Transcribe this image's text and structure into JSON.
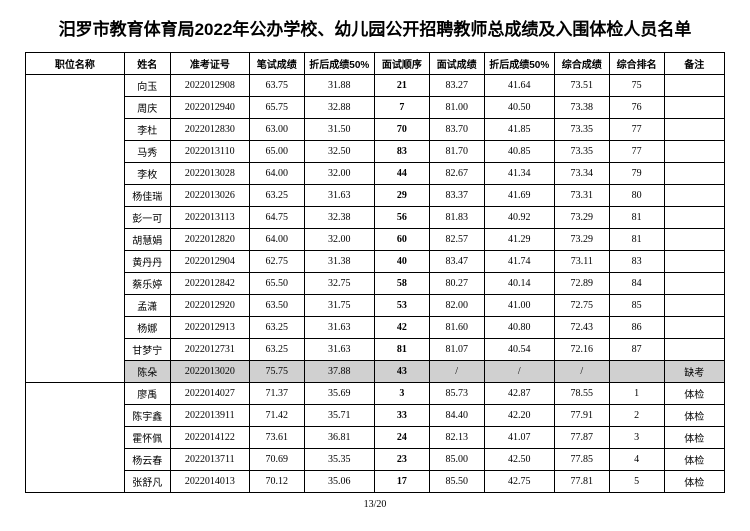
{
  "title": "汨罗市教育体育局2022年公办学校、幼儿园公开招聘教师总成绩及入围体检人员名单",
  "headers": {
    "position": "职位名称",
    "name": "姓名",
    "examId": "准考证号",
    "written": "笔试成绩",
    "written50": "折后成绩50%",
    "order": "面试顺序",
    "interview": "面试成绩",
    "interview50": "折后成绩50%",
    "total": "综合成绩",
    "rank": "综合排名",
    "remark": "备注"
  },
  "group1": [
    {
      "name": "向玉",
      "id": "2022012908",
      "w": "63.75",
      "w50": "31.88",
      "ord": "21",
      "i": "83.27",
      "i50": "41.64",
      "t": "73.51",
      "rk": "75",
      "rm": ""
    },
    {
      "name": "周庆",
      "id": "2022012940",
      "w": "65.75",
      "w50": "32.88",
      "ord": "7",
      "i": "81.00",
      "i50": "40.50",
      "t": "73.38",
      "rk": "76",
      "rm": ""
    },
    {
      "name": "李杜",
      "id": "2022012830",
      "w": "63.00",
      "w50": "31.50",
      "ord": "70",
      "i": "83.70",
      "i50": "41.85",
      "t": "73.35",
      "rk": "77",
      "rm": ""
    },
    {
      "name": "马秀",
      "id": "2022013110",
      "w": "65.00",
      "w50": "32.50",
      "ord": "83",
      "i": "81.70",
      "i50": "40.85",
      "t": "73.35",
      "rk": "77",
      "rm": ""
    },
    {
      "name": "李枚",
      "id": "2022013028",
      "w": "64.00",
      "w50": "32.00",
      "ord": "44",
      "i": "82.67",
      "i50": "41.34",
      "t": "73.34",
      "rk": "79",
      "rm": ""
    },
    {
      "name": "杨佳瑞",
      "id": "2022013026",
      "w": "63.25",
      "w50": "31.63",
      "ord": "29",
      "i": "83.37",
      "i50": "41.69",
      "t": "73.31",
      "rk": "80",
      "rm": ""
    },
    {
      "name": "彭一可",
      "id": "2022013113",
      "w": "64.75",
      "w50": "32.38",
      "ord": "56",
      "i": "81.83",
      "i50": "40.92",
      "t": "73.29",
      "rk": "81",
      "rm": ""
    },
    {
      "name": "胡慧娟",
      "id": "2022012820",
      "w": "64.00",
      "w50": "32.00",
      "ord": "60",
      "i": "82.57",
      "i50": "41.29",
      "t": "73.29",
      "rk": "81",
      "rm": ""
    },
    {
      "name": "黄丹丹",
      "id": "2022012904",
      "w": "62.75",
      "w50": "31.38",
      "ord": "40",
      "i": "83.47",
      "i50": "41.74",
      "t": "73.11",
      "rk": "83",
      "rm": ""
    },
    {
      "name": "蔡乐婷",
      "id": "2022012842",
      "w": "65.50",
      "w50": "32.75",
      "ord": "58",
      "i": "80.27",
      "i50": "40.14",
      "t": "72.89",
      "rk": "84",
      "rm": ""
    },
    {
      "name": "孟潇",
      "id": "2022012920",
      "w": "63.50",
      "w50": "31.75",
      "ord": "53",
      "i": "82.00",
      "i50": "41.00",
      "t": "72.75",
      "rk": "85",
      "rm": ""
    },
    {
      "name": "杨娜",
      "id": "2022012913",
      "w": "63.25",
      "w50": "31.63",
      "ord": "42",
      "i": "81.60",
      "i50": "40.80",
      "t": "72.43",
      "rk": "86",
      "rm": ""
    },
    {
      "name": "甘梦宁",
      "id": "2022012731",
      "w": "63.25",
      "w50": "31.63",
      "ord": "81",
      "i": "81.07",
      "i50": "40.54",
      "t": "72.16",
      "rk": "87",
      "rm": ""
    },
    {
      "name": "陈朵",
      "id": "2022013020",
      "w": "75.75",
      "w50": "37.88",
      "ord": "43",
      "i": "/",
      "i50": "/",
      "t": "/",
      "rk": "",
      "rm": "缺考",
      "hl": true
    }
  ],
  "group2": [
    {
      "name": "廖禹",
      "id": "2022014027",
      "w": "71.37",
      "w50": "35.69",
      "ord": "3",
      "i": "85.73",
      "i50": "42.87",
      "t": "78.55",
      "rk": "1",
      "rm": "体检"
    },
    {
      "name": "陈宇鑫",
      "id": "2022013911",
      "w": "71.42",
      "w50": "35.71",
      "ord": "33",
      "i": "84.40",
      "i50": "42.20",
      "t": "77.91",
      "rk": "2",
      "rm": "体检"
    },
    {
      "name": "霍怀佩",
      "id": "2022014122",
      "w": "73.61",
      "w50": "36.81",
      "ord": "24",
      "i": "82.13",
      "i50": "41.07",
      "t": "77.87",
      "rk": "3",
      "rm": "体检"
    },
    {
      "name": "杨云春",
      "id": "2022013711",
      "w": "70.69",
      "w50": "35.35",
      "ord": "23",
      "i": "85.00",
      "i50": "42.50",
      "t": "77.85",
      "rk": "4",
      "rm": "体检"
    },
    {
      "name": "张舒凡",
      "id": "2022014013",
      "w": "70.12",
      "w50": "35.06",
      "ord": "17",
      "i": "85.50",
      "i50": "42.75",
      "t": "77.81",
      "rk": "5",
      "rm": "体检"
    }
  ],
  "pager": "13/20"
}
